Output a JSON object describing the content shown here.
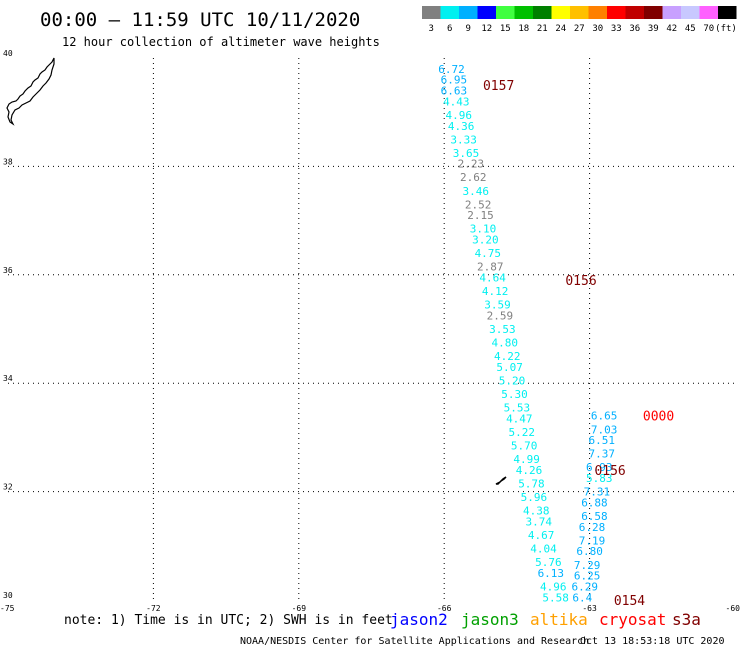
{
  "header": {
    "title": "00:00 – 11:59 UTC 10/11/2020",
    "subtitle": "12 hour collection of altimeter wave heights"
  },
  "legend": {
    "unit": "(ft)",
    "bins": [
      {
        "label": "3",
        "color": "#808080"
      },
      {
        "label": "6",
        "color": "#00f0f0"
      },
      {
        "label": "9",
        "color": "#00b0ff"
      },
      {
        "label": "12",
        "color": "#0000ff"
      },
      {
        "label": "15",
        "color": "#40ff40"
      },
      {
        "label": "18",
        "color": "#00c000"
      },
      {
        "label": "21",
        "color": "#008000"
      },
      {
        "label": "24",
        "color": "#ffff00"
      },
      {
        "label": "27",
        "color": "#ffc000"
      },
      {
        "label": "30",
        "color": "#ff8000"
      },
      {
        "label": "33",
        "color": "#ff0000"
      },
      {
        "label": "36",
        "color": "#c00000"
      },
      {
        "label": "39",
        "color": "#800000"
      },
      {
        "label": "42",
        "color": "#c8a0ff"
      },
      {
        "label": "45",
        "color": "#c8c8ff"
      },
      {
        "label": "70",
        "color": "#ff60ff"
      },
      {
        "label": "",
        "color": "#000000"
      }
    ]
  },
  "footer": {
    "note": "note: 1) Time is in UTC; 2) SWH is in feet",
    "credit": "NOAA/NESDIS Center for Satellite Applications and Research",
    "timestamp": "Oct 13 18:53:18 UTC 2020",
    "satellites": [
      {
        "name": "jason2",
        "color": "#0000ff"
      },
      {
        "name": "jason3",
        "color": "#00a000"
      },
      {
        "name": "altika",
        "color": "#ffa000"
      },
      {
        "name": "cryosat",
        "color": "#ff0000"
      },
      {
        "name": "s3a",
        "color": "#800000"
      }
    ]
  },
  "chart_data": {
    "type": "scatter",
    "xlim": [
      -75,
      -60
    ],
    "ylim": [
      30,
      40
    ],
    "x_ticks": [
      "-75",
      "-72",
      "-69",
      "-66",
      "-63",
      "-60"
    ],
    "y_ticks": [
      "30",
      "32",
      "34",
      "36",
      "38",
      "40"
    ],
    "grid": true,
    "series": [
      {
        "name": "s3a",
        "time_labels": [
          {
            "text": "0157",
            "x": -65.2,
            "y": 39.5
          },
          {
            "text": "0156",
            "x": -63.5,
            "y": 35.9
          },
          {
            "text": "0156",
            "x": -62.9,
            "y": 32.4
          },
          {
            "text": "0154",
            "x": -62.5,
            "y": 30.0
          }
        ],
        "points": [
          {
            "x": -65.85,
            "y": 39.8,
            "v": "6.72",
            "c": "#00b0ff"
          },
          {
            "x": -65.8,
            "y": 39.6,
            "v": "6.95",
            "c": "#00b0ff"
          },
          {
            "x": -65.8,
            "y": 39.4,
            "v": "6.63",
            "c": "#00b0ff"
          },
          {
            "x": -65.75,
            "y": 39.2,
            "v": "4.43",
            "c": "#00f0f0"
          },
          {
            "x": -65.7,
            "y": 38.95,
            "v": "4.96",
            "c": "#00f0f0"
          },
          {
            "x": -65.65,
            "y": 38.75,
            "v": "4.36",
            "c": "#00f0f0"
          },
          {
            "x": -65.6,
            "y": 38.5,
            "v": "3.33",
            "c": "#00f0f0"
          },
          {
            "x": -65.55,
            "y": 38.25,
            "v": "3.65",
            "c": "#00f0f0"
          },
          {
            "x": -65.45,
            "y": 38.05,
            "v": "2.23",
            "c": "#808080"
          },
          {
            "x": -65.4,
            "y": 37.8,
            "v": "2.62",
            "c": "#808080"
          },
          {
            "x": -65.35,
            "y": 37.55,
            "v": "3.46",
            "c": "#00f0f0"
          },
          {
            "x": -65.3,
            "y": 37.3,
            "v": "2.52",
            "c": "#808080"
          },
          {
            "x": -65.25,
            "y": 37.1,
            "v": "2.15",
            "c": "#808080"
          },
          {
            "x": -65.2,
            "y": 36.85,
            "v": "3.10",
            "c": "#00f0f0"
          },
          {
            "x": -65.15,
            "y": 36.65,
            "v": "3.20",
            "c": "#00f0f0"
          },
          {
            "x": -65.1,
            "y": 36.4,
            "v": "4.75",
            "c": "#00f0f0"
          },
          {
            "x": -65.05,
            "y": 36.15,
            "v": "2.87",
            "c": "#808080"
          },
          {
            "x": -65.0,
            "y": 35.95,
            "v": "4.64",
            "c": "#00f0f0"
          },
          {
            "x": -64.95,
            "y": 35.7,
            "v": "4.12",
            "c": "#00f0f0"
          },
          {
            "x": -64.9,
            "y": 35.45,
            "v": "3.59",
            "c": "#00f0f0"
          },
          {
            "x": -64.85,
            "y": 35.25,
            "v": "2.59",
            "c": "#808080"
          },
          {
            "x": -64.8,
            "y": 35.0,
            "v": "3.53",
            "c": "#00f0f0"
          },
          {
            "x": -64.75,
            "y": 34.75,
            "v": "4.80",
            "c": "#00f0f0"
          },
          {
            "x": -64.7,
            "y": 34.5,
            "v": "4.22",
            "c": "#00f0f0"
          },
          {
            "x": -64.65,
            "y": 34.3,
            "v": "5.07",
            "c": "#00f0f0"
          },
          {
            "x": -64.6,
            "y": 34.05,
            "v": "5.20",
            "c": "#00f0f0"
          },
          {
            "x": -64.55,
            "y": 33.8,
            "v": "5.30",
            "c": "#00f0f0"
          },
          {
            "x": -64.5,
            "y": 33.55,
            "v": "5.53",
            "c": "#00f0f0"
          },
          {
            "x": -64.45,
            "y": 33.35,
            "v": "4.47",
            "c": "#00f0f0"
          },
          {
            "x": -64.4,
            "y": 33.1,
            "v": "5.22",
            "c": "#00f0f0"
          },
          {
            "x": -64.35,
            "y": 32.85,
            "v": "5.70",
            "c": "#00f0f0"
          },
          {
            "x": -64.3,
            "y": 32.6,
            "v": "4.99",
            "c": "#00f0f0"
          },
          {
            "x": -64.25,
            "y": 32.4,
            "v": "4.26",
            "c": "#00f0f0"
          },
          {
            "x": -64.2,
            "y": 32.15,
            "v": "5.78",
            "c": "#00f0f0"
          },
          {
            "x": -64.15,
            "y": 31.9,
            "v": "5.96",
            "c": "#00f0f0"
          },
          {
            "x": -64.1,
            "y": 31.65,
            "v": "4.38",
            "c": "#00f0f0"
          },
          {
            "x": -64.05,
            "y": 31.45,
            "v": "3.74",
            "c": "#00f0f0"
          },
          {
            "x": -64.0,
            "y": 31.2,
            "v": "4.67",
            "c": "#00f0f0"
          },
          {
            "x": -63.95,
            "y": 30.95,
            "v": "4.04",
            "c": "#00f0f0"
          },
          {
            "x": -63.85,
            "y": 30.7,
            "v": "5.76",
            "c": "#00f0f0"
          },
          {
            "x": -63.8,
            "y": 30.5,
            "v": "6.13",
            "c": "#00b0ff"
          },
          {
            "x": -63.75,
            "y": 30.25,
            "v": "4.96",
            "c": "#00f0f0"
          },
          {
            "x": -63.7,
            "y": 30.05,
            "v": "5.58",
            "c": "#00f0f0"
          }
        ]
      },
      {
        "name": "cryosat",
        "time_labels": [
          {
            "text": "0000",
            "x": -61.9,
            "y": 33.4
          }
        ],
        "points": [
          {
            "x": -62.7,
            "y": 33.4,
            "v": "6.65",
            "c": "#00b0ff"
          },
          {
            "x": -62.7,
            "y": 33.15,
            "v": "7.03",
            "c": "#00b0ff"
          },
          {
            "x": -62.75,
            "y": 32.95,
            "v": "6.51",
            "c": "#00b0ff"
          },
          {
            "x": -62.75,
            "y": 32.7,
            "v": "7.37",
            "c": "#00b0ff"
          },
          {
            "x": -62.8,
            "y": 32.45,
            "v": "6.93",
            "c": "#00b0ff"
          },
          {
            "x": -62.8,
            "y": 32.25,
            "v": "5.83",
            "c": "#00f0f0"
          },
          {
            "x": -62.85,
            "y": 32.0,
            "v": "7.31",
            "c": "#00b0ff"
          },
          {
            "x": -62.9,
            "y": 31.8,
            "v": "6.88",
            "c": "#00b0ff"
          },
          {
            "x": -62.9,
            "y": 31.55,
            "v": "6.58",
            "c": "#00b0ff"
          },
          {
            "x": -62.95,
            "y": 31.35,
            "v": "6.28",
            "c": "#00b0ff"
          },
          {
            "x": -62.95,
            "y": 31.1,
            "v": "7.19",
            "c": "#00b0ff"
          },
          {
            "x": -63.0,
            "y": 30.9,
            "v": "6.80",
            "c": "#00b0ff"
          },
          {
            "x": -63.05,
            "y": 30.65,
            "v": "7.29",
            "c": "#00b0ff"
          },
          {
            "x": -63.05,
            "y": 30.45,
            "v": "6.25",
            "c": "#00b0ff"
          },
          {
            "x": -63.1,
            "y": 30.25,
            "v": "6.29",
            "c": "#00b0ff"
          },
          {
            "x": -63.15,
            "y": 30.05,
            "v": "6.4",
            "c": "#00b0ff"
          }
        ]
      }
    ]
  }
}
